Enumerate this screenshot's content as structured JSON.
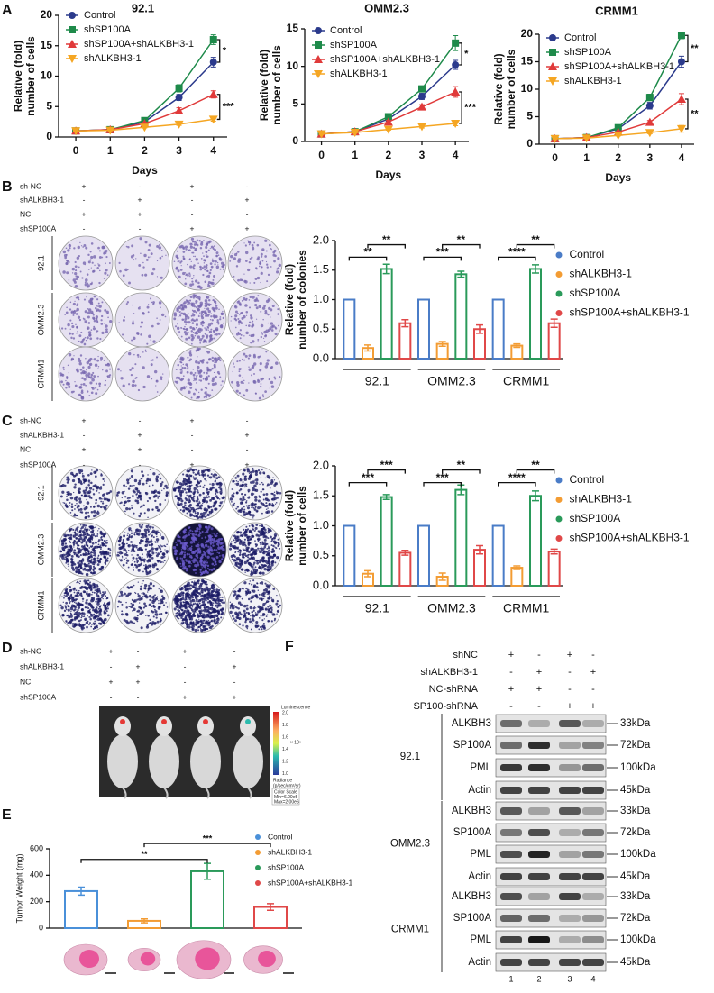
{
  "panel_letters": [
    "A",
    "B",
    "C",
    "D",
    "E",
    "F"
  ],
  "chart_data": [
    {
      "type": "line",
      "title": "92.1",
      "xlabel": "Days",
      "ylabel": [
        "Relative (fold)",
        "number of cells"
      ],
      "x": [
        0,
        1,
        2,
        3,
        4
      ],
      "xlim": [
        -0.5,
        4.4
      ],
      "xticks": [
        0,
        1,
        2,
        3,
        4
      ],
      "ylim": [
        0,
        20
      ],
      "yticks": [
        0,
        5,
        10,
        15,
        20
      ],
      "series": [
        {
          "name": "Control",
          "color": "#2b3a8c",
          "marker": "circle",
          "values": [
            1,
            1.2,
            2.5,
            6.5,
            12.3
          ],
          "errors": [
            0.05,
            0.1,
            0.2,
            0.5,
            0.8
          ]
        },
        {
          "name": "shSP100A",
          "color": "#1e8a4a",
          "marker": "square",
          "values": [
            1,
            1.2,
            2.7,
            8,
            16
          ],
          "errors": [
            0.05,
            0.1,
            0.2,
            0.6,
            0.8
          ]
        },
        {
          "name": "shSP100A+shALKBH3-1",
          "color": "#e03a3a",
          "marker": "triangle-up",
          "values": [
            1,
            1.2,
            2.2,
            4.3,
            7
          ],
          "errors": [
            0.05,
            0.1,
            0.2,
            0.5,
            0.6
          ]
        },
        {
          "name": "shALKBH3-1",
          "color": "#f5a623",
          "marker": "triangle-down",
          "values": [
            1,
            1.1,
            1.6,
            2.1,
            2.9
          ],
          "errors": [
            0.05,
            0.05,
            0.1,
            0.2,
            0.3
          ]
        }
      ],
      "annotations": [
        "*",
        "***"
      ]
    },
    {
      "type": "line",
      "title": "OMM2.3",
      "xlabel": "Days",
      "ylabel": [
        "Relative (fold)",
        "number of cells"
      ],
      "x": [
        0,
        1,
        2,
        3,
        4
      ],
      "xlim": [
        -0.5,
        4.4
      ],
      "xticks": [
        0,
        1,
        2,
        3,
        4
      ],
      "ylim": [
        0,
        15
      ],
      "yticks": [
        0,
        5,
        10,
        15
      ],
      "series": [
        {
          "name": "Control",
          "color": "#2b3a8c",
          "marker": "circle",
          "values": [
            1,
            1.3,
            3,
            6,
            10.2
          ],
          "errors": [
            0.05,
            0.1,
            0.2,
            0.4,
            0.6
          ]
        },
        {
          "name": "shSP100A",
          "color": "#1e8a4a",
          "marker": "square",
          "values": [
            1,
            1.3,
            3.3,
            7,
            13.1
          ],
          "errors": [
            0.05,
            0.1,
            0.2,
            0.4,
            1
          ]
        },
        {
          "name": "shSP100A+shALKBH3-1",
          "color": "#e03a3a",
          "marker": "triangle-up",
          "values": [
            1,
            1.3,
            2.6,
            4.6,
            6.6
          ],
          "errors": [
            0.05,
            0.1,
            0.2,
            0.3,
            0.7
          ]
        },
        {
          "name": "shALKBH3-1",
          "color": "#f5a623",
          "marker": "triangle-down",
          "values": [
            1,
            1.2,
            1.6,
            2,
            2.4
          ],
          "errors": [
            0.05,
            0.05,
            0.1,
            0.2,
            0.3
          ]
        }
      ],
      "annotations": [
        "*",
        "***"
      ]
    },
    {
      "type": "line",
      "title": "CRMM1",
      "xlabel": "Days",
      "ylabel": [
        "Relative (fold)",
        "number of cells"
      ],
      "x": [
        0,
        1,
        2,
        3,
        4
      ],
      "xlim": [
        -0.5,
        4.4
      ],
      "xticks": [
        0,
        1,
        2,
        3,
        4
      ],
      "ylim": [
        0,
        20
      ],
      "yticks": [
        0,
        5,
        10,
        15,
        20
      ],
      "series": [
        {
          "name": "Control",
          "color": "#2b3a8c",
          "marker": "circle",
          "values": [
            1,
            1.2,
            2.8,
            7,
            15
          ],
          "errors": [
            0.05,
            0.1,
            0.2,
            0.6,
            1
          ]
        },
        {
          "name": "shSP100A",
          "color": "#1e8a4a",
          "marker": "square",
          "values": [
            1,
            1.2,
            3,
            8.5,
            19.8
          ],
          "errors": [
            0.05,
            0.1,
            0.2,
            0.6,
            0.6
          ]
        },
        {
          "name": "shSP100A+shALKBH3-1",
          "color": "#e03a3a",
          "marker": "triangle-up",
          "values": [
            1,
            1.2,
            2.2,
            4,
            8.2
          ],
          "errors": [
            0.05,
            0.1,
            0.2,
            0.3,
            1
          ]
        },
        {
          "name": "shALKBH3-1",
          "color": "#f5a623",
          "marker": "triangle-down",
          "values": [
            1,
            1.1,
            1.6,
            2.1,
            2.8
          ],
          "errors": [
            0.05,
            0.05,
            0.1,
            0.2,
            0.6
          ]
        }
      ],
      "annotations": [
        "**",
        "**"
      ]
    },
    {
      "type": "bar",
      "bar_style": "outline",
      "ylabel": [
        "Relative (fold)",
        "number of colonies"
      ],
      "categories": [
        "92.1",
        "OMM2.3",
        "CRMM1"
      ],
      "ylim": [
        0,
        2
      ],
      "yticks": [
        {
          "value": 0,
          "label": "0.0"
        },
        0.5,
        {
          "value": 1,
          "label": "1.0"
        },
        1.5,
        {
          "value": 2,
          "label": "2.0"
        }
      ],
      "series": [
        {
          "name": "Control",
          "color": "#4a7cc7",
          "values": [
            1,
            1,
            1
          ],
          "errors": [
            0,
            0,
            0
          ]
        },
        {
          "name": "shALKBH3-1",
          "color": "#f39c33",
          "values": [
            0.18,
            0.25,
            0.22
          ],
          "errors": [
            0.05,
            0.04,
            0.03
          ]
        },
        {
          "name": "shSP100A",
          "color": "#2a9a5a",
          "values": [
            1.52,
            1.43,
            1.52
          ],
          "errors": [
            0.08,
            0.05,
            0.07
          ]
        },
        {
          "name": "shSP100A+shALKBH3-1",
          "color": "#e04848",
          "values": [
            0.6,
            0.5,
            0.6
          ],
          "errors": [
            0.06,
            0.07,
            0.07
          ]
        }
      ],
      "annotations": [
        "**",
        "**",
        "**",
        "***",
        "**",
        "****"
      ]
    },
    {
      "type": "bar",
      "bar_style": "outline",
      "ylabel": [
        "Relative (fold)",
        "number of cells"
      ],
      "categories": [
        "92.1",
        "OMM2.3",
        "CRMM1"
      ],
      "ylim": [
        0,
        2
      ],
      "yticks": [
        {
          "value": 0,
          "label": "0.0"
        },
        0.5,
        {
          "value": 1,
          "label": "1.0"
        },
        1.5,
        {
          "value": 2,
          "label": "2.0"
        }
      ],
      "series": [
        {
          "name": "Control",
          "color": "#4a7cc7",
          "values": [
            1,
            1,
            1
          ],
          "errors": [
            0,
            0,
            0
          ]
        },
        {
          "name": "shALKBH3-1",
          "color": "#f39c33",
          "values": [
            0.2,
            0.15,
            0.3
          ],
          "errors": [
            0.05,
            0.06,
            0.03
          ]
        },
        {
          "name": "shSP100A",
          "color": "#2a9a5a",
          "values": [
            1.48,
            1.6,
            1.5
          ],
          "errors": [
            0.04,
            0.08,
            0.08
          ]
        },
        {
          "name": "shSP100A+shALKBH3-1",
          "color": "#e04848",
          "values": [
            0.55,
            0.6,
            0.57
          ],
          "errors": [
            0.04,
            0.07,
            0.04
          ]
        }
      ],
      "annotations": [
        "***",
        "***",
        "**",
        "***",
        "**",
        "****"
      ]
    },
    {
      "type": "bar",
      "bar_style": "outline",
      "ylabel": "Tumor Weight (mg)",
      "categories": [
        null
      ],
      "ylim": [
        0,
        600
      ],
      "yticks": [
        0,
        200,
        400,
        600
      ],
      "series": [
        {
          "name": "Control",
          "color": "#4a90d9",
          "values": [
            280
          ],
          "errors": [
            30
          ]
        },
        {
          "name": "shALKBH3-1",
          "color": "#f39c33",
          "values": [
            55
          ],
          "errors": [
            15
          ]
        },
        {
          "name": "shSP100A",
          "color": "#2a9a5a",
          "values": [
            430
          ],
          "errors": [
            60
          ]
        },
        {
          "name": "shSP100A+shALKBH3-1",
          "color": "#e04848",
          "values": [
            160
          ],
          "errors": [
            25
          ]
        }
      ],
      "annotations": [
        "**",
        "***"
      ]
    }
  ],
  "treatments": {
    "rows": [
      "sh-NC",
      "shALKBH3-1",
      "NC",
      "shSP100A"
    ],
    "signs": [
      [
        "+",
        "-",
        "+",
        "-"
      ],
      [
        "-",
        "+",
        "-",
        "+"
      ],
      [
        "+",
        "+",
        "-",
        "-"
      ],
      [
        "-",
        "-",
        "+",
        "+"
      ]
    ]
  },
  "colony_assay": {
    "cell_lines": [
      "92.1",
      "OMM2.3",
      "CRMM1"
    ]
  },
  "imaging": {
    "colorbar_title": "Luminescence",
    "colorbar_ticks": [
      "2.0",
      "1.8",
      "1.6",
      "1.4",
      "1.2",
      "1.0"
    ],
    "scale_note": "× 10⁶",
    "unit": [
      "Radiance",
      "(p/sec/cm²/sr)"
    ],
    "color_scale": [
      "Color Scale",
      "Min=6.00e5",
      "Max=2.00e6"
    ]
  },
  "western_blot": {
    "treatments": {
      "rows": [
        "shNC",
        "shALKBH3-1",
        "NC-shRNA",
        "SP100-shRNA"
      ],
      "signs": [
        [
          "+",
          "-",
          "+",
          "-"
        ],
        [
          "-",
          "+",
          "-",
          "+"
        ],
        [
          "+",
          "+",
          "-",
          "-"
        ],
        [
          "-",
          "-",
          "+",
          "+"
        ]
      ]
    },
    "cell_lines": [
      "92.1",
      "OMM2.3",
      "CRMM1"
    ],
    "proteins": [
      "ALKBH3",
      "SP100A",
      "PML",
      "Actin"
    ],
    "sizes": [
      "33kDa",
      "72kDa",
      "100kDa",
      "45kDa"
    ],
    "lanes": [
      "1",
      "2",
      "3",
      "4"
    ]
  }
}
